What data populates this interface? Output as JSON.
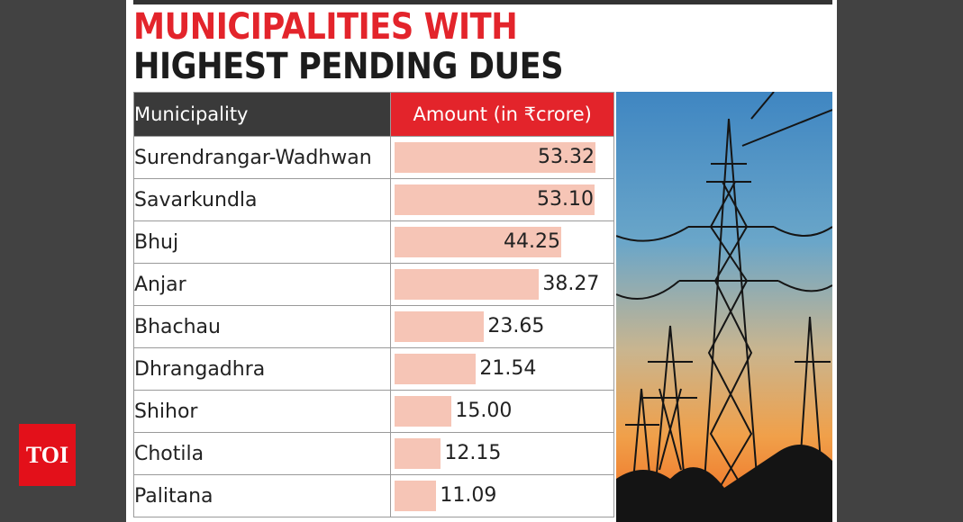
{
  "title_line1": "MUNICIPALITIES WITH",
  "title_line2": "HIGHEST PENDING DUES",
  "logo_text": "TOI",
  "colors": {
    "title_red": "#e3242b",
    "header_dark": "#3a3a3a",
    "header_red": "#e3242b",
    "bar": "#f6c5b6",
    "background": "#424242"
  },
  "chart_data": {
    "type": "bar",
    "orientation": "horizontal",
    "title": "MUNICIPALITIES WITH HIGHEST PENDING DUES",
    "columns": [
      "Municipality",
      "Amount (in ₹crore)"
    ],
    "categories": [
      "Surendrangar-Wadhwan",
      "Savarkundla",
      "Bhuj",
      "Anjar",
      "Bhachau",
      "Dhrangadhra",
      "Shihor",
      "Chotila",
      "Palitana"
    ],
    "values": [
      53.32,
      53.1,
      44.25,
      38.27,
      23.65,
      21.54,
      15.0,
      12.15,
      11.09
    ],
    "value_labels": [
      "53.32",
      "53.10",
      "44.25",
      "38.27",
      "23.65",
      "21.54",
      "15.00",
      "12.15",
      "11.09"
    ],
    "xlim": [
      0,
      54
    ]
  }
}
